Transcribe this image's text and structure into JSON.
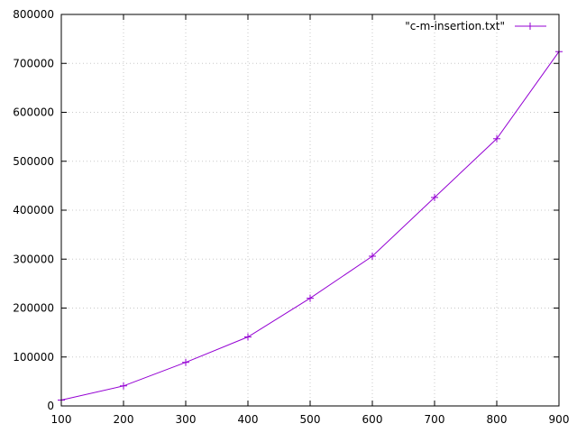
{
  "chart_data": {
    "type": "line",
    "title": "",
    "xlabel": "",
    "ylabel": "",
    "xlim": [
      100,
      900
    ],
    "ylim": [
      0,
      800000
    ],
    "x_ticks": [
      100,
      200,
      300,
      400,
      500,
      600,
      700,
      800,
      900
    ],
    "y_ticks": [
      0,
      100000,
      200000,
      300000,
      400000,
      500000,
      600000,
      700000,
      800000
    ],
    "grid": true,
    "legend_position": "top-right",
    "series": [
      {
        "name": "\"c-m-insertion.txt\"",
        "color": "#9400d3",
        "marker": "plus",
        "x": [
          100,
          200,
          300,
          400,
          500,
          600,
          700,
          800,
          900
        ],
        "y": [
          12000,
          41000,
          89000,
          141000,
          220000,
          306000,
          426000,
          546000,
          724000
        ]
      }
    ]
  }
}
